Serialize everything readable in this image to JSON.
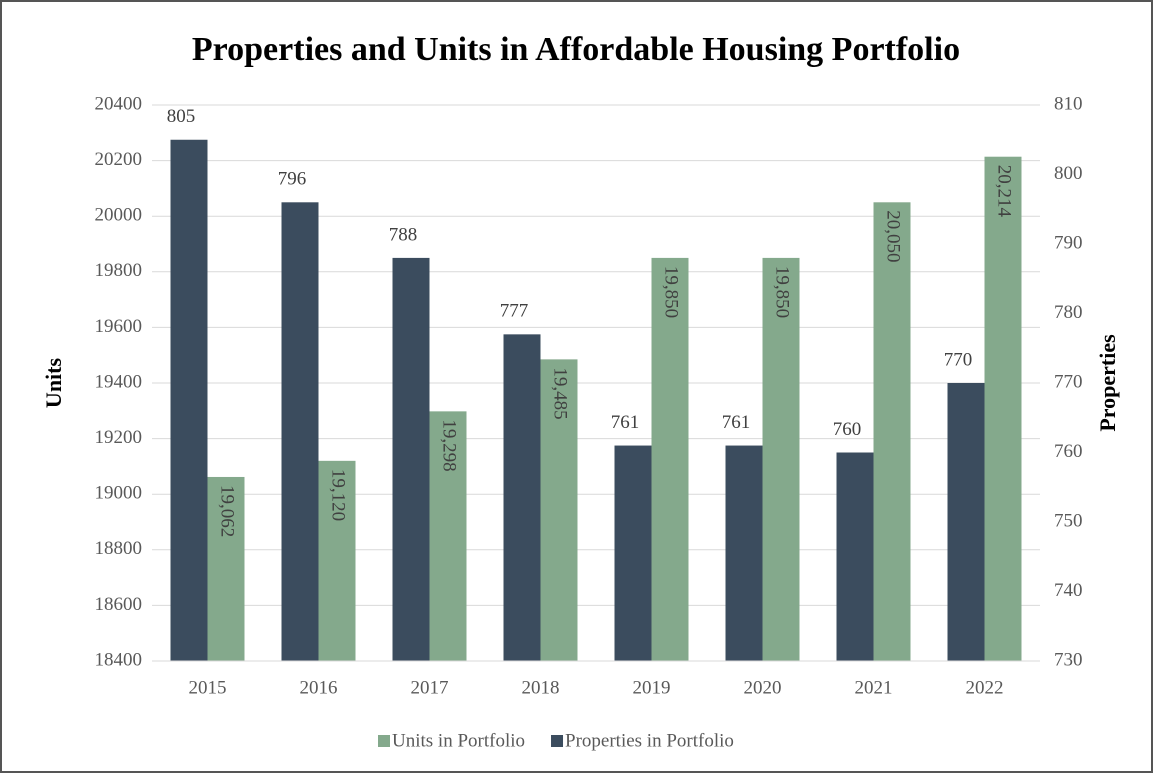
{
  "chart_data": {
    "type": "bar",
    "title": "Properties and Units in Affordable Housing Portfolio",
    "categories": [
      "2015",
      "2016",
      "2017",
      "2018",
      "2019",
      "2020",
      "2021",
      "2022"
    ],
    "series": [
      {
        "name": "Units in Portfolio",
        "color": "#84a98c",
        "axis": "y",
        "values": [
          19062,
          19120,
          19298,
          19485,
          19850,
          19850,
          20050,
          20214
        ],
        "value_labels": [
          "19,062",
          "19,120",
          "19,298",
          "19,485",
          "19,850",
          "19,850",
          "20,050",
          "20,214"
        ]
      },
      {
        "name": "Properties in Portfolio",
        "color": "#3b4c5e",
        "axis": "y2",
        "values": [
          805,
          796,
          788,
          777,
          761,
          761,
          760,
          770
        ]
      }
    ],
    "ylabel": "Units",
    "y2label": "Properties",
    "ylim": [
      18400,
      20400
    ],
    "yticks": [
      18400,
      18600,
      18800,
      19000,
      19200,
      19400,
      19600,
      19800,
      20000,
      20200,
      20400
    ],
    "y2lim": [
      730,
      810
    ],
    "y2ticks": [
      730,
      740,
      750,
      760,
      770,
      780,
      790,
      800,
      810
    ],
    "grid": true,
    "legend": "bottom"
  }
}
